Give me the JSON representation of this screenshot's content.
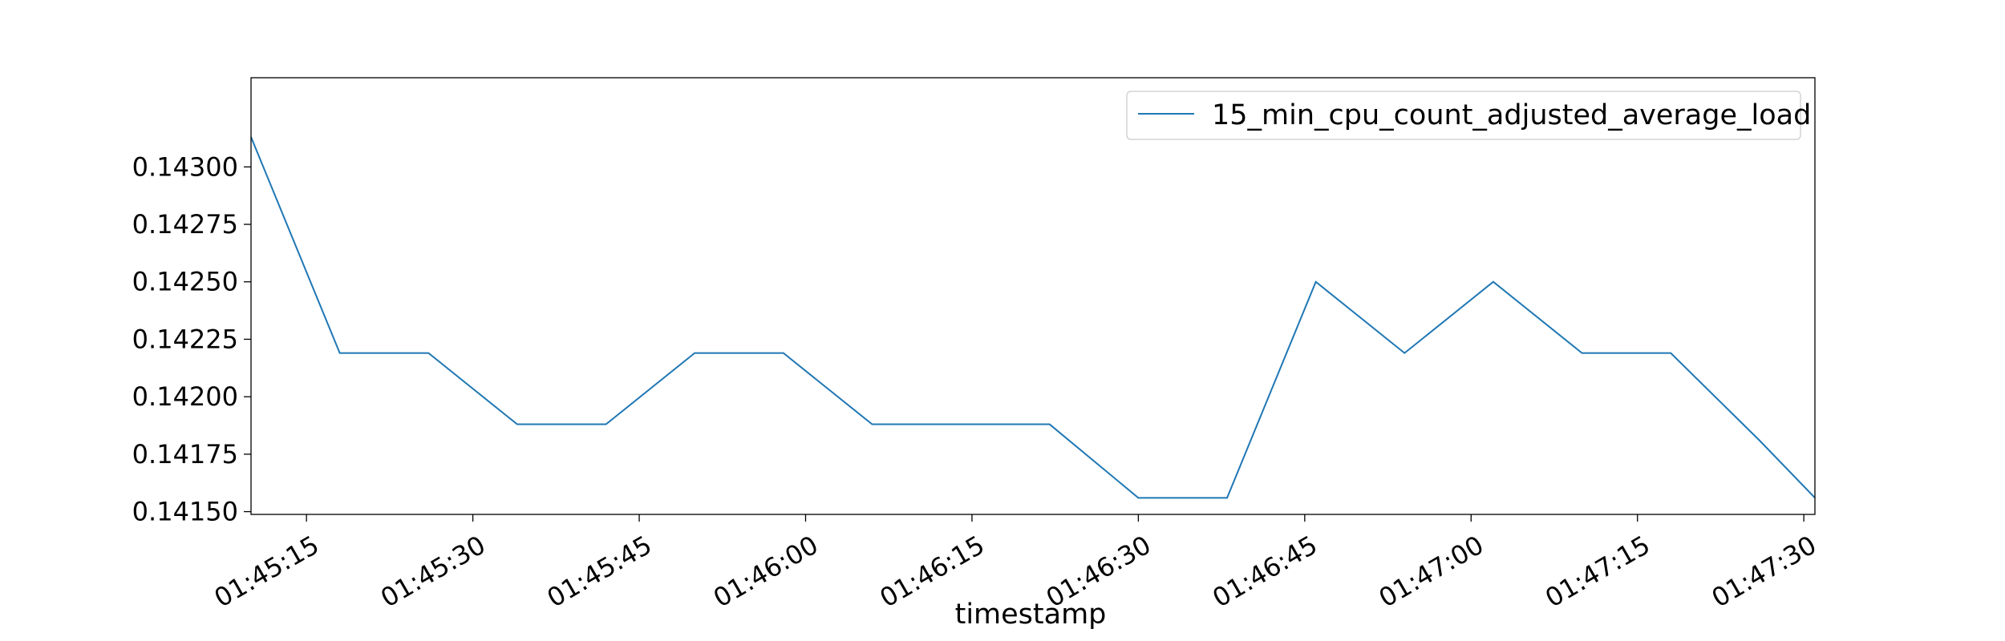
{
  "chart_data": {
    "type": "line",
    "xlabel": "timestamp",
    "ylabel": "",
    "xlim": [
      "01:45:10",
      "01:47:31"
    ],
    "ylim": [
      0.141488,
      0.143388
    ],
    "xticks": [
      "01:45:15",
      "01:45:30",
      "01:45:45",
      "01:46:00",
      "01:46:15",
      "01:46:30",
      "01:46:45",
      "01:47:00",
      "01:47:15",
      "01:47:30"
    ],
    "yticks": [
      "0.14150",
      "0.14175",
      "0.14200",
      "0.14225",
      "0.14250",
      "0.14275",
      "0.14300"
    ],
    "legend_position": "top-right",
    "grid": false,
    "series": [
      {
        "name": "15_min_cpu_count_adjusted_average_load",
        "color": "#1f77b4",
        "x": [
          "01:45:10",
          "01:45:18",
          "01:45:26",
          "01:45:34",
          "01:45:42",
          "01:45:50",
          "01:45:58",
          "01:46:06",
          "01:46:14",
          "01:46:22",
          "01:46:30",
          "01:46:38",
          "01:46:46",
          "01:46:54",
          "01:47:02",
          "01:47:10",
          "01:47:18",
          "01:47:26",
          "01:47:31"
        ],
        "values": [
          0.14313,
          0.14219,
          0.14219,
          0.14188,
          0.14188,
          0.14219,
          0.14219,
          0.14188,
          0.14188,
          0.14188,
          0.14156,
          0.14156,
          0.1425,
          0.14219,
          0.1425,
          0.14219,
          0.14219,
          0.14181,
          0.14156
        ]
      }
    ]
  }
}
